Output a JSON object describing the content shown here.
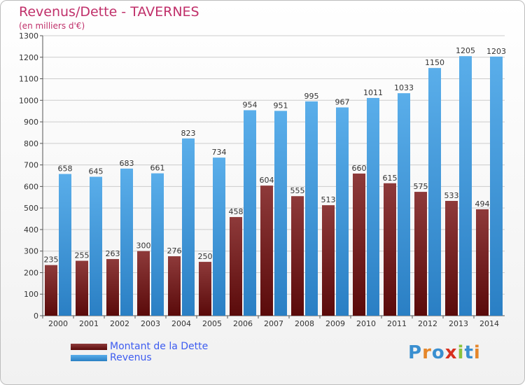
{
  "header": {
    "title": "Revenus/Dette - TAVERNES",
    "subtitle": "(en milliers d'€)"
  },
  "logo": {
    "text": "Proxiti",
    "letters": [
      "P",
      "r",
      "o",
      "x",
      "i",
      "t",
      "i"
    ],
    "colors": [
      "#3a8fd0",
      "#e5862a",
      "#3a8fd0",
      "#d7311f",
      "#8bc23c",
      "#3a8fd0",
      "#e5862a"
    ]
  },
  "colors": {
    "dette": "#7a1a1a",
    "revenus": "#3c9ade",
    "axis": "#555555",
    "grid": "#cccccc",
    "label": "#333333"
  },
  "chart_data": {
    "type": "bar",
    "categories": [
      "2000",
      "2001",
      "2002",
      "2003",
      "2004",
      "2005",
      "2006",
      "2007",
      "2008",
      "2009",
      "2010",
      "2011",
      "2012",
      "2013",
      "2014"
    ],
    "series": [
      {
        "name": "Montant de la Dette",
        "values": [
          235,
          255,
          263,
          300,
          276,
          250,
          458,
          604,
          555,
          513,
          660,
          615,
          575,
          533,
          494
        ]
      },
      {
        "name": "Revenus",
        "values": [
          658,
          645,
          683,
          661,
          823,
          734,
          954,
          951,
          995,
          967,
          1011,
          1033,
          1150,
          1205,
          1203
        ]
      }
    ],
    "ylim": [
      0,
      1300
    ],
    "yticks": [
      0,
      100,
      200,
      300,
      400,
      500,
      600,
      700,
      800,
      900,
      1000,
      1100,
      1200,
      1300
    ],
    "grid": true,
    "legend_position": "bottom-left"
  }
}
